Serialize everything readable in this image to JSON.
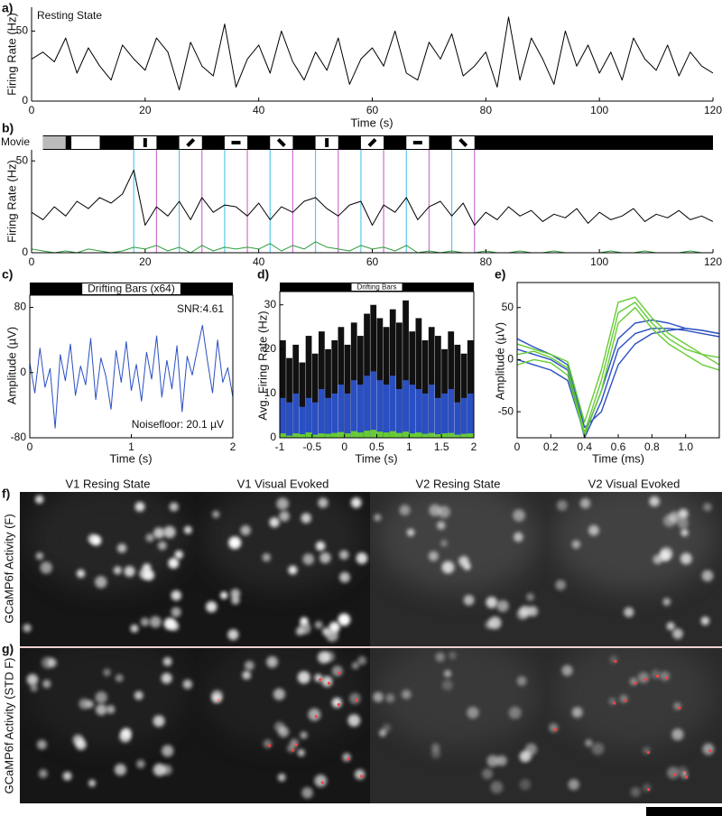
{
  "chart_data": [
    {
      "type": "line",
      "panel_label": "a)",
      "annotation": "Resting State",
      "x_label": "Time (s)",
      "y_label": "Firing Rate (Hz)",
      "x": [
        0,
        2,
        4,
        6,
        8,
        10,
        12,
        14,
        16,
        18,
        20,
        22,
        24,
        26,
        28,
        30,
        32,
        34,
        36,
        38,
        40,
        42,
        44,
        46,
        48,
        50,
        52,
        54,
        56,
        58,
        60,
        62,
        64,
        66,
        68,
        70,
        72,
        74,
        76,
        78,
        80,
        82,
        84,
        86,
        88,
        90,
        92,
        94,
        96,
        98,
        100,
        102,
        104,
        106,
        108,
        110,
        112,
        114,
        116,
        118,
        120
      ],
      "series": [
        {
          "color": "#000000",
          "values": [
            30,
            35,
            28,
            45,
            20,
            38,
            25,
            15,
            40,
            30,
            22,
            45,
            35,
            8,
            42,
            25,
            18,
            55,
            10,
            30,
            40,
            20,
            50,
            28,
            15,
            35,
            22,
            45,
            12,
            30,
            38,
            25,
            50,
            20,
            15,
            42,
            30,
            48,
            18,
            25,
            35,
            10,
            60,
            15,
            45,
            30,
            12,
            50,
            25,
            40,
            20,
            35,
            15,
            45,
            30,
            22,
            40,
            18,
            35,
            25,
            20
          ]
        }
      ],
      "xlim": [
        0,
        120
      ],
      "ylim": [
        0,
        67
      ],
      "xticks": [
        0,
        20,
        40,
        60,
        80,
        100,
        120
      ],
      "yticks": [
        0,
        50
      ]
    },
    {
      "type": "line",
      "panel_label": "b)",
      "y_label": "Firing Rate (Hz)",
      "stimulus_label": "Movie",
      "gray_period": [
        2,
        6
      ],
      "blank_period": [
        7,
        12
      ],
      "stimulus_onsets": [
        18,
        26,
        34,
        42,
        50,
        58,
        66,
        74
      ],
      "stimulus_offsets": [
        22,
        30,
        38,
        46,
        54,
        62,
        70,
        78
      ],
      "onset_color": "#5bc8e8",
      "offset_color": "#d070d0",
      "x": [
        0,
        2,
        4,
        6,
        8,
        10,
        12,
        14,
        16,
        18,
        20,
        22,
        24,
        26,
        28,
        30,
        32,
        34,
        36,
        38,
        40,
        42,
        44,
        46,
        48,
        50,
        52,
        54,
        56,
        58,
        60,
        62,
        64,
        66,
        68,
        70,
        72,
        74,
        76,
        78,
        80,
        82,
        84,
        86,
        88,
        90,
        92,
        94,
        96,
        98,
        100,
        102,
        104,
        106,
        108,
        110,
        112,
        114,
        116,
        118,
        120
      ],
      "series": [
        {
          "color": "#000000",
          "values": [
            22,
            18,
            25,
            20,
            28,
            24,
            30,
            27,
            32,
            45,
            15,
            25,
            20,
            28,
            18,
            30,
            22,
            26,
            25,
            20,
            27,
            18,
            25,
            22,
            28,
            30,
            24,
            20,
            26,
            28,
            15,
            26,
            22,
            30,
            18,
            25,
            28,
            20,
            27,
            15,
            22,
            18,
            25,
            20,
            23,
            17,
            21,
            19,
            24,
            16,
            22,
            18,
            20,
            24,
            17,
            21,
            19,
            23,
            18,
            20,
            17
          ]
        },
        {
          "color": "#2e9e3e",
          "values": [
            2,
            1,
            0,
            1,
            0,
            2,
            1,
            0,
            1,
            3,
            2,
            4,
            1,
            3,
            0,
            4,
            1,
            3,
            2,
            3,
            2,
            5,
            1,
            4,
            2,
            6,
            3,
            2,
            1,
            4,
            2,
            3,
            1,
            4,
            0,
            1,
            0,
            1,
            0,
            0,
            1,
            0,
            0,
            1,
            0,
            0,
            1,
            0,
            0,
            0,
            0,
            1,
            0,
            0,
            1,
            0,
            0,
            0,
            1,
            0,
            0
          ]
        }
      ],
      "xlim": [
        0,
        120
      ],
      "ylim": [
        0,
        56
      ],
      "xticks": [
        0,
        20,
        40,
        60,
        80,
        100,
        120
      ],
      "yticks": [
        0,
        50
      ]
    },
    {
      "type": "line",
      "panel_label": "c)",
      "stimulus_label": "Drifting Bars (x64)",
      "annotations": [
        "SNR:4.61",
        "Noisefloor: 20.1 µV"
      ],
      "x_label": "Time (s)",
      "y_label": "Amplitude (µV)",
      "x": [
        0,
        0.05,
        0.1,
        0.15,
        0.2,
        0.25,
        0.3,
        0.35,
        0.4,
        0.45,
        0.5,
        0.55,
        0.6,
        0.65,
        0.7,
        0.75,
        0.8,
        0.85,
        0.9,
        0.95,
        1,
        1.05,
        1.1,
        1.15,
        1.2,
        1.25,
        1.3,
        1.35,
        1.4,
        1.45,
        1.5,
        1.55,
        1.6,
        1.65,
        1.7,
        1.75,
        1.8,
        1.85,
        1.9,
        1.95,
        2
      ],
      "series": [
        {
          "color": "#2a4fc2",
          "values": [
            12,
            -25,
            30,
            -18,
            5,
            -68,
            22,
            -10,
            35,
            -28,
            8,
            -15,
            42,
            -33,
            18,
            -5,
            -45,
            27,
            -12,
            38,
            -22,
            10,
            -35,
            25,
            -8,
            45,
            -30,
            15,
            -20,
            33,
            -48,
            20,
            -3,
            28,
            58,
            14,
            -25,
            40,
            -12,
            6,
            -30
          ]
        }
      ],
      "xlim": [
        0,
        2
      ],
      "ylim": [
        -80,
        95
      ],
      "xticks": [
        0,
        1,
        2
      ],
      "yticks": [
        -80,
        0,
        80
      ]
    },
    {
      "type": "histogram",
      "panel_label": "d)",
      "stimulus_label": "Drifting Bars",
      "x_label": "Time (s)",
      "y_label": "Avg. Firing Rate (Hz)",
      "bins": [
        -1,
        -0.9,
        -0.8,
        -0.7,
        -0.6,
        -0.5,
        -0.4,
        -0.3,
        -0.2,
        -0.1,
        0,
        0.1,
        0.2,
        0.3,
        0.4,
        0.5,
        0.6,
        0.7,
        0.8,
        0.9,
        1,
        1.1,
        1.2,
        1.3,
        1.4,
        1.5,
        1.6,
        1.7,
        1.8,
        1.9,
        2
      ],
      "series": [
        {
          "color": "#111111",
          "values": [
            22,
            18,
            21,
            17,
            23,
            19,
            24,
            20,
            22,
            25,
            21,
            26,
            23,
            28,
            30,
            27,
            25,
            29,
            26,
            31,
            24,
            27,
            22,
            25,
            23,
            20,
            24,
            21,
            19,
            22
          ]
        },
        {
          "color": "#2a4fc2",
          "values": [
            9,
            8,
            10,
            7,
            9,
            8,
            11,
            9,
            10,
            12,
            10,
            13,
            12,
            14,
            15,
            13,
            12,
            14,
            11,
            13,
            12,
            11,
            10,
            12,
            9,
            10,
            11,
            8,
            9,
            10
          ]
        },
        {
          "color": "#66cc33",
          "values": [
            1,
            0.5,
            1,
            0.8,
            1.2,
            0.7,
            1,
            0.9,
            1.1,
            1.3,
            1,
            1.5,
            1.2,
            1.6,
            1.8,
            1.4,
            1.2,
            1.5,
            1.1,
            1.4,
            1,
            1.2,
            0.9,
            1.1,
            0.8,
            1,
            1.1,
            0.7,
            0.9,
            1
          ]
        }
      ],
      "xlim": [
        -1,
        2
      ],
      "ylim": [
        0,
        33
      ],
      "xticks": [
        -1,
        -0.5,
        0,
        0.5,
        1,
        1.5,
        2
      ],
      "yticks": [
        0,
        10,
        20,
        30
      ]
    },
    {
      "type": "line",
      "panel_label": "e)",
      "x_label": "Time (ms)",
      "y_label": "Amplitude (µV)",
      "x": [
        0,
        0.1,
        0.2,
        0.3,
        0.4,
        0.5,
        0.6,
        0.7,
        0.8,
        0.9,
        1,
        1.1,
        1.2
      ],
      "series": [
        {
          "color": "#2a4fc2",
          "values": [
            10,
            5,
            0,
            -10,
            -75,
            -40,
            10,
            25,
            30,
            30,
            28,
            25,
            22
          ]
        },
        {
          "color": "#2a4fc2",
          "values": [
            20,
            12,
            5,
            -5,
            -65,
            -50,
            -5,
            15,
            25,
            28,
            30,
            28,
            25
          ]
        },
        {
          "color": "#2a4fc2",
          "values": [
            0,
            -5,
            -10,
            -20,
            -72,
            -30,
            20,
            35,
            38,
            35,
            30,
            28,
            25
          ]
        },
        {
          "color": "#66cc33",
          "values": [
            5,
            8,
            2,
            -8,
            -70,
            -20,
            45,
            55,
            35,
            20,
            10,
            5,
            2
          ]
        },
        {
          "color": "#66cc33",
          "values": [
            15,
            10,
            5,
            -2,
            -60,
            -10,
            55,
            60,
            40,
            25,
            15,
            5,
            -5
          ]
        },
        {
          "color": "#66cc33",
          "values": [
            -5,
            0,
            -3,
            -15,
            -73,
            -30,
            35,
            50,
            30,
            15,
            5,
            -5,
            -10
          ]
        }
      ],
      "xlim": [
        0,
        1.2
      ],
      "ylim": [
        -75,
        74
      ],
      "xticks": [
        0,
        0.2,
        0.4,
        0.6,
        0.8,
        {
          "value": 1,
          "label": "1.0"
        }
      ],
      "yticks": [
        -50,
        0,
        50
      ]
    }
  ],
  "image_panels": {
    "column_titles": [
      "V1 Resing State",
      "V1 Visual Evoked",
      "V2 Resing State",
      "V2 Visual Evoked"
    ],
    "rows": [
      {
        "panel_label": "f)",
        "label": "GCaMP6f Activity (F)"
      },
      {
        "panel_label": "g)",
        "label": "GCaMP6f Activity (STD F)"
      }
    ]
  }
}
